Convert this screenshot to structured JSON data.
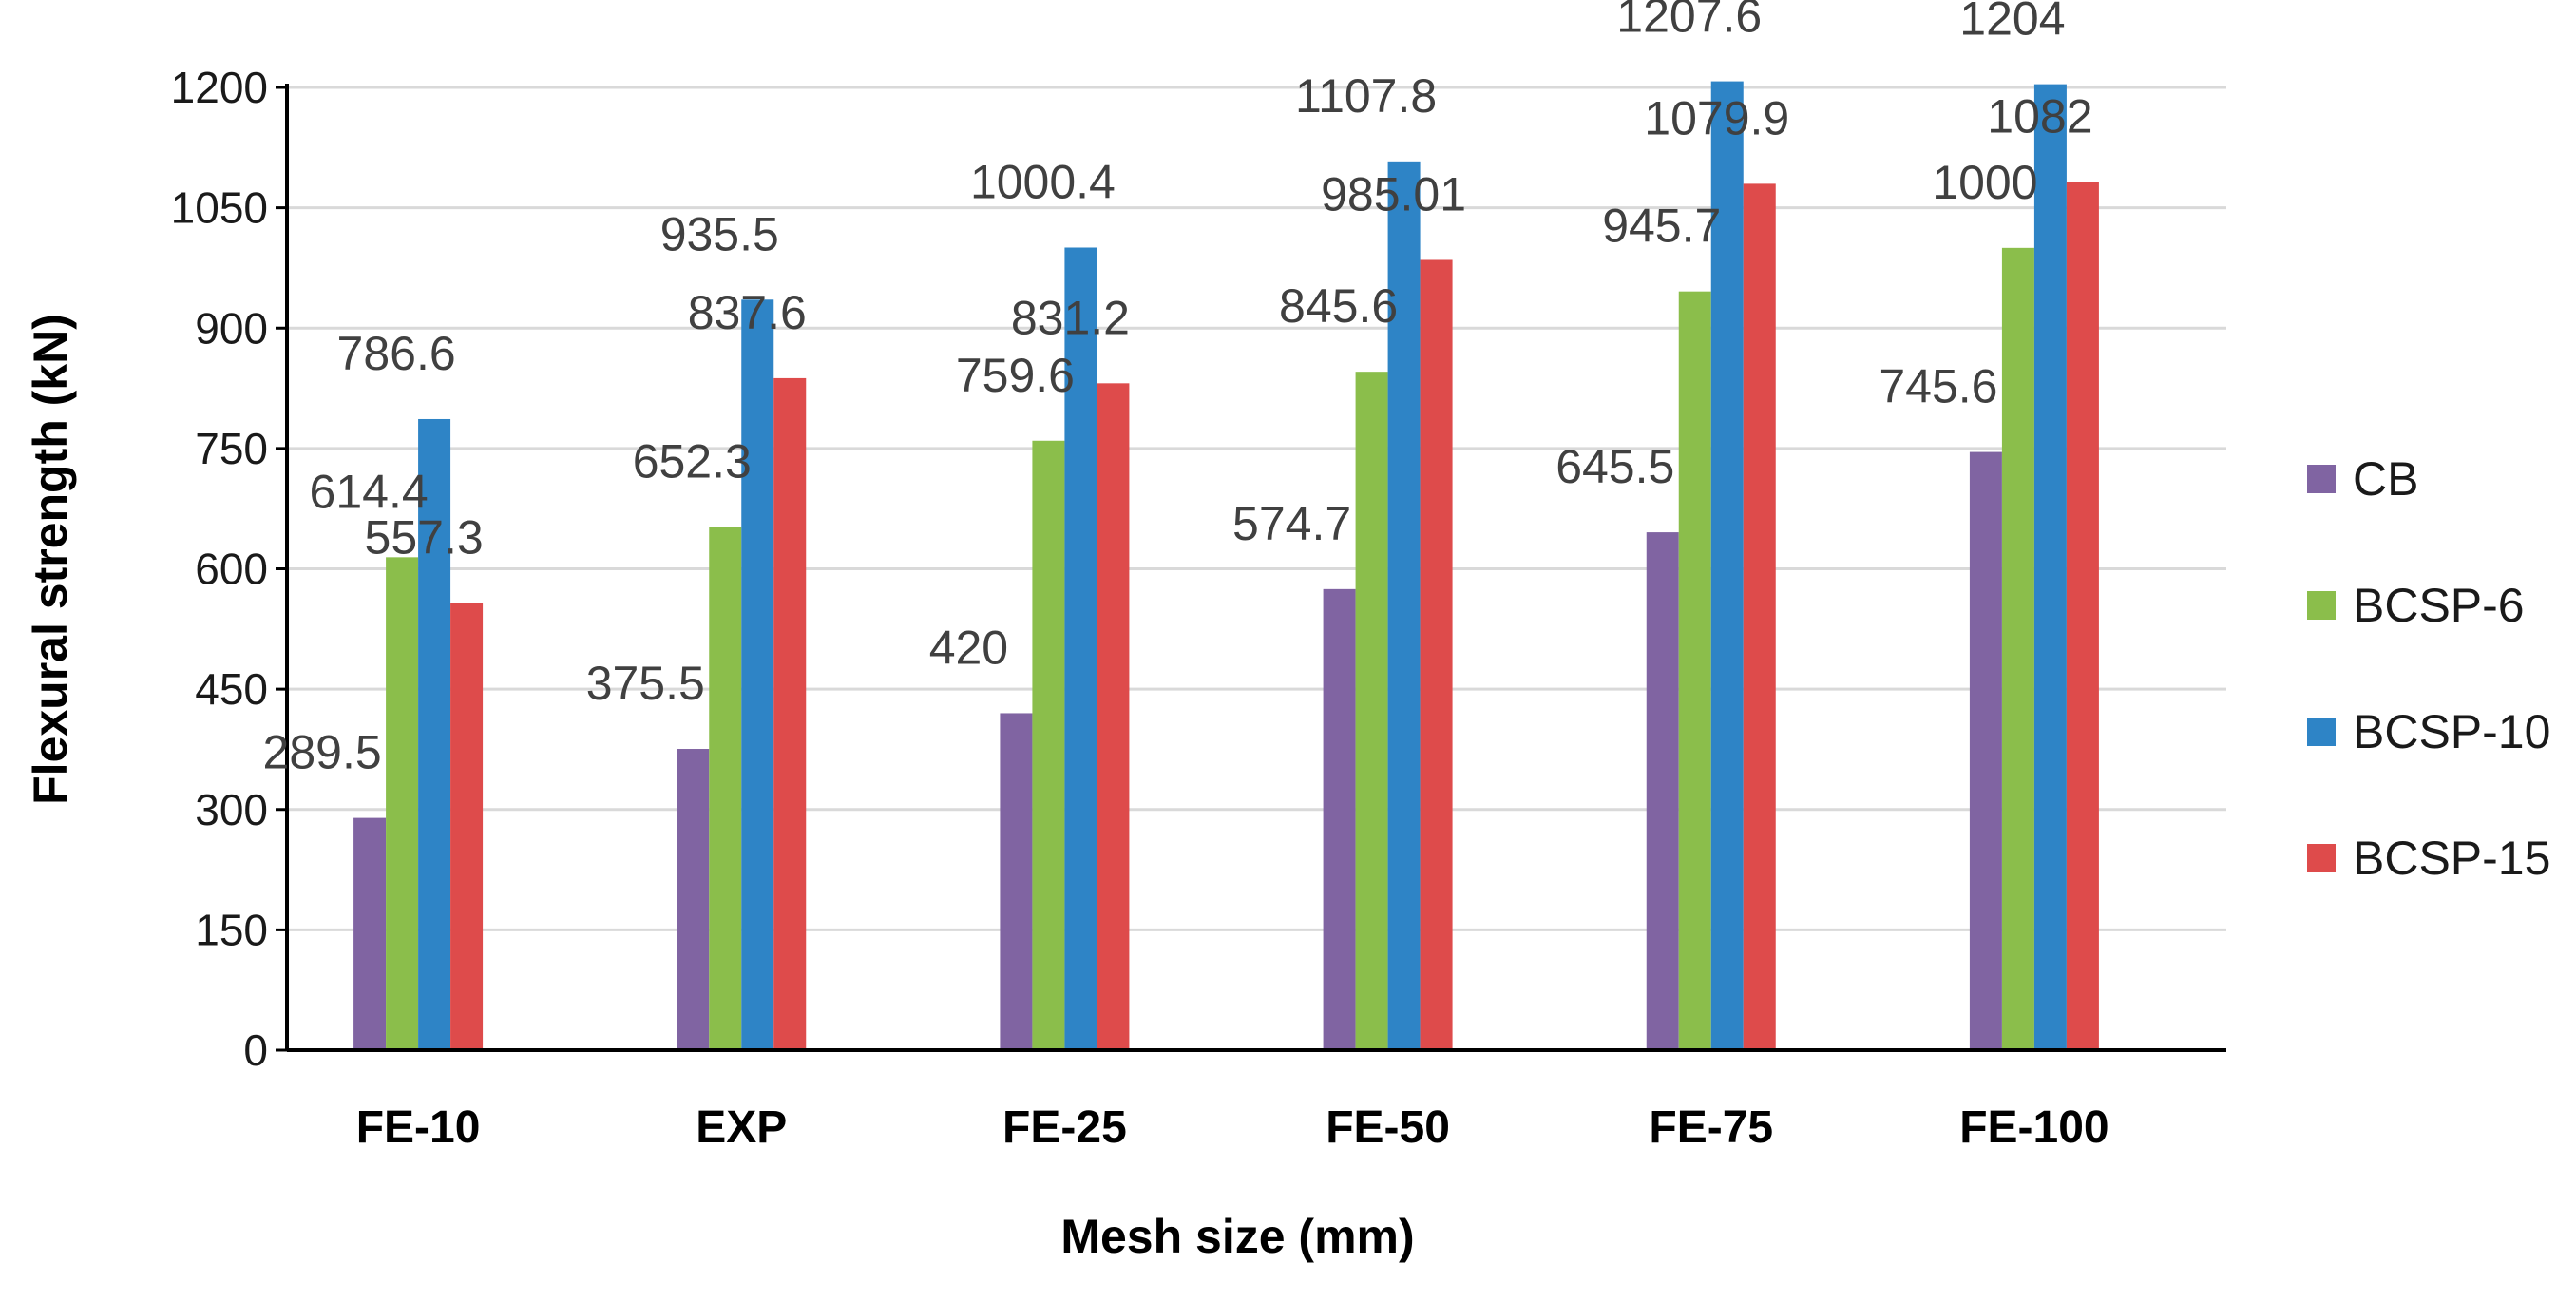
{
  "chart_data": {
    "type": "bar",
    "title": "",
    "xlabel": "Mesh size (mm)",
    "ylabel": "Flexural strength (kN)",
    "ylim": [
      0,
      1200
    ],
    "yticks": [
      0,
      150,
      300,
      450,
      600,
      750,
      900,
      1050,
      1200
    ],
    "grid": true,
    "legend_position": "right",
    "categories": [
      "FE-10",
      "EXP",
      "FE-25",
      "FE-50",
      "FE-75",
      "FE-100"
    ],
    "series": [
      {
        "name": "CB",
        "color": "#8064A2",
        "values": [
          289.5,
          375.5,
          420,
          574.7,
          645.5,
          745.6
        ],
        "labels": [
          "289.5",
          "375.5",
          "420",
          "574.7",
          "645.5",
          "745.6"
        ]
      },
      {
        "name": "BCSP-6",
        "color": "#8BBE4B",
        "values": [
          614.4,
          652.3,
          759.6,
          845.6,
          945.7,
          1000
        ],
        "labels": [
          "614.4",
          "652.3",
          "759.6",
          "845.6",
          "945.7",
          "1000"
        ]
      },
      {
        "name": "BCSP-10",
        "color": "#2E84C6",
        "values": [
          786.6,
          935.5,
          1000.4,
          1107.8,
          1207.6,
          1204
        ],
        "labels": [
          "786.6",
          "935.5",
          "1000.4",
          "1107.8",
          "1207.6",
          "1204"
        ]
      },
      {
        "name": "BCSP-15",
        "color": "#DE4B4B",
        "values": [
          557.3,
          837.6,
          831.2,
          985.01,
          1079.9,
          1082
        ],
        "labels": [
          "557.3",
          "837.6",
          "831.2",
          "985.01",
          "1079.9",
          "1082"
        ]
      }
    ]
  }
}
